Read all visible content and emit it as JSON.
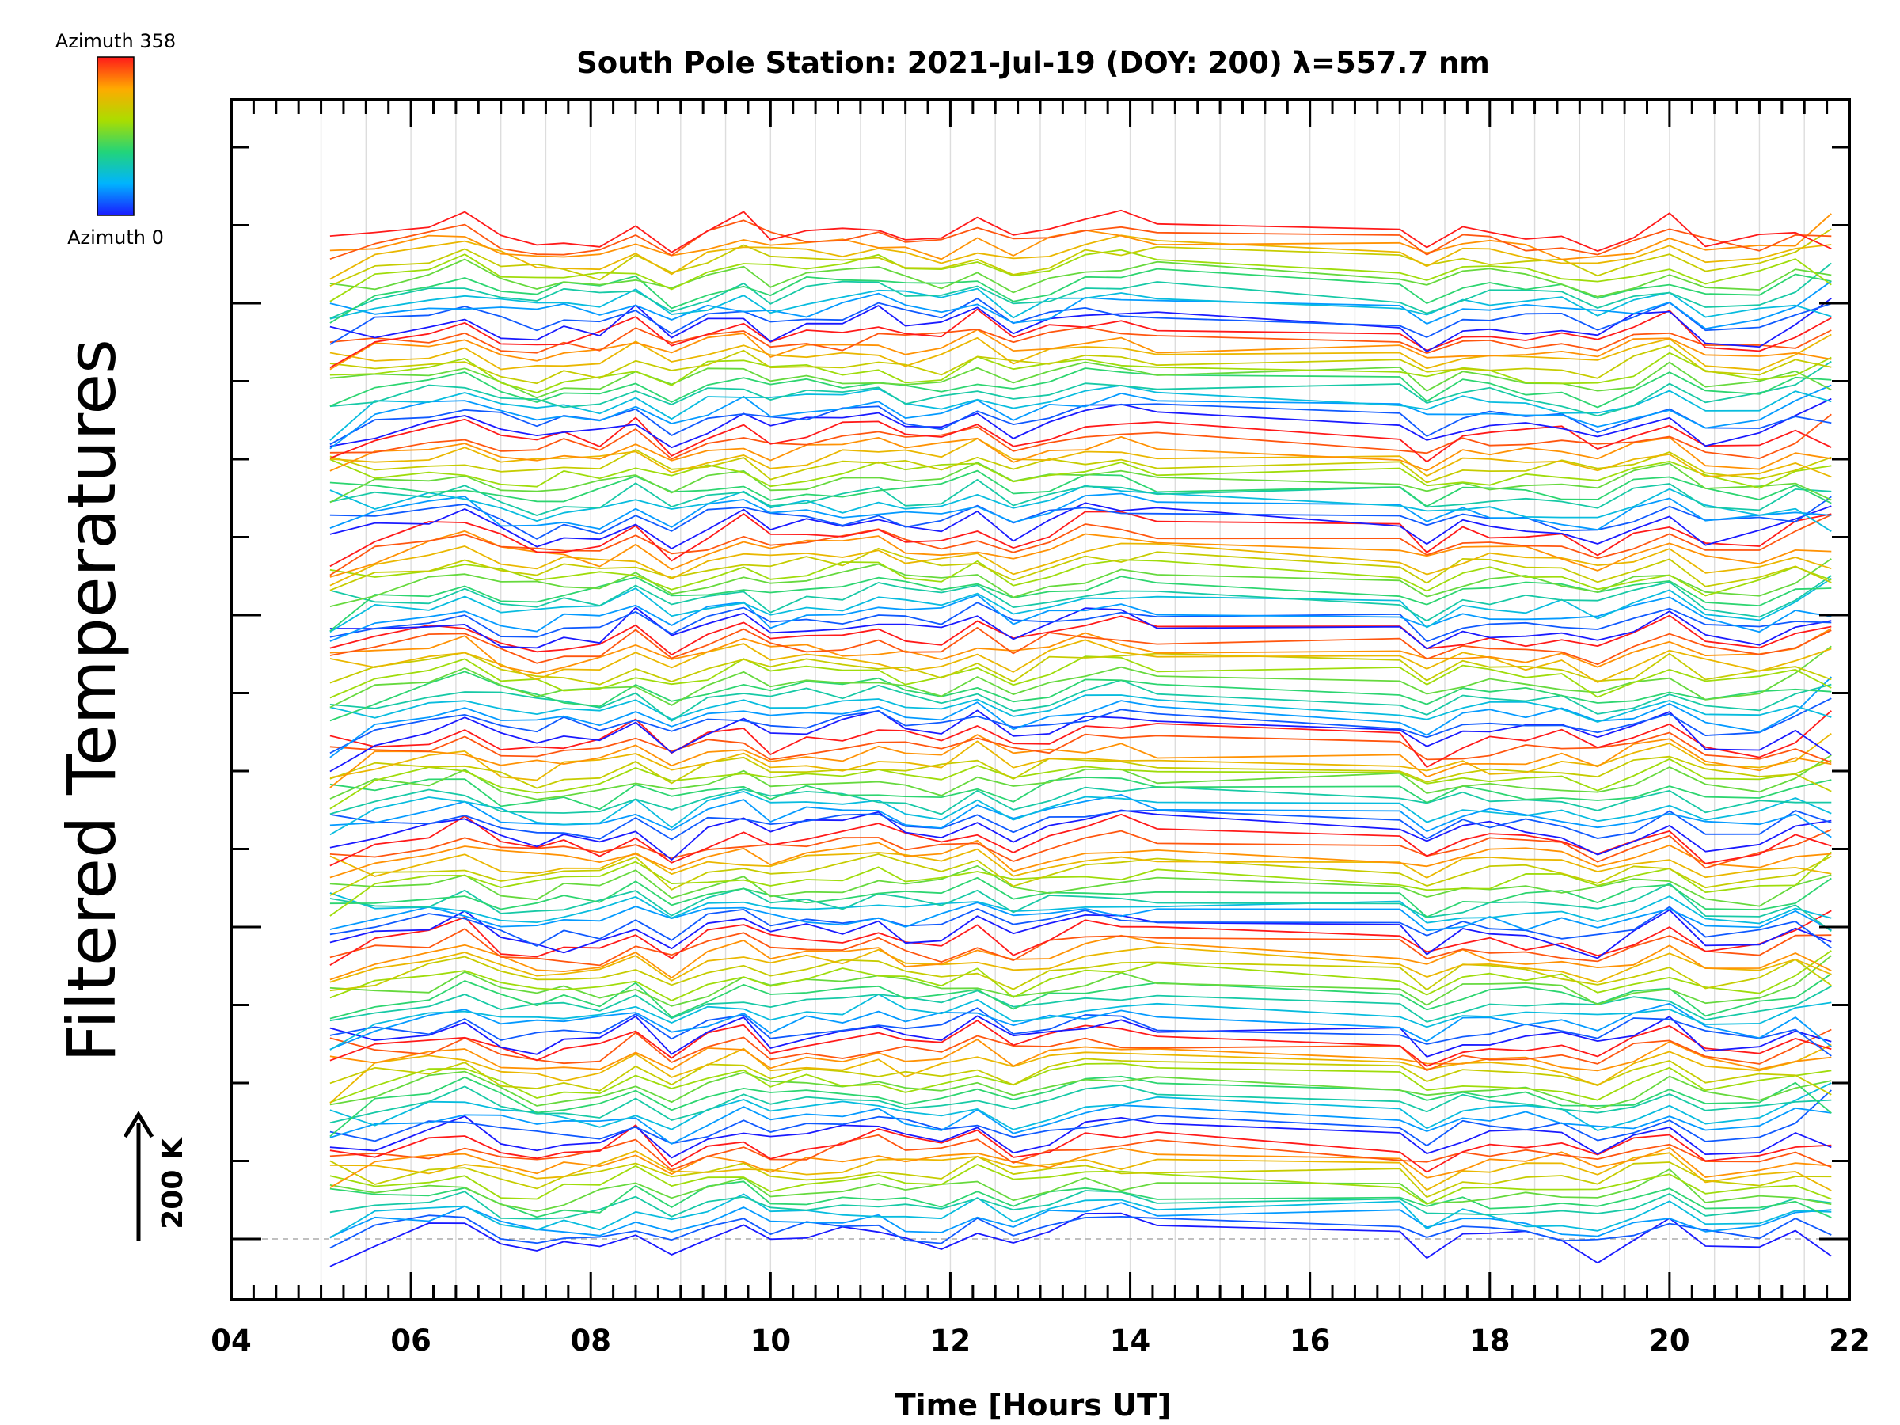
{
  "chart_data": {
    "type": "line",
    "title": "South Pole Station: 2021-Jul-19 (DOY: 200) λ=557.7 nm",
    "xlabel": "Time [Hours UT]",
    "ylabel": "Filtered Temperatures",
    "xlim": [
      4,
      22
    ],
    "x_ticks": [
      "04",
      "06",
      "08",
      "10",
      "12",
      "14",
      "16",
      "18",
      "20",
      "22"
    ],
    "scale_bar": {
      "label": "200 K",
      "kelvin": 200
    },
    "colorbar": {
      "top_label": "Azimuth 358",
      "bottom_label": "Azimuth 0",
      "min": 0,
      "max": 358
    },
    "n_traces": 130,
    "trace_spacing_k": 47.1,
    "sample_times": [
      5.1,
      5.6,
      6.2,
      6.6,
      7.0,
      7.4,
      7.7,
      8.1,
      8.5,
      8.9,
      9.3,
      9.7,
      10.0,
      10.4,
      10.8,
      11.2,
      11.5,
      11.9,
      12.3,
      12.7,
      13.1,
      13.5,
      13.9,
      14.3,
      17.0,
      17.3,
      17.7,
      18.0,
      18.4,
      18.8,
      19.2,
      19.6,
      20.0,
      20.4,
      21.0,
      21.4,
      21.8
    ]
  }
}
